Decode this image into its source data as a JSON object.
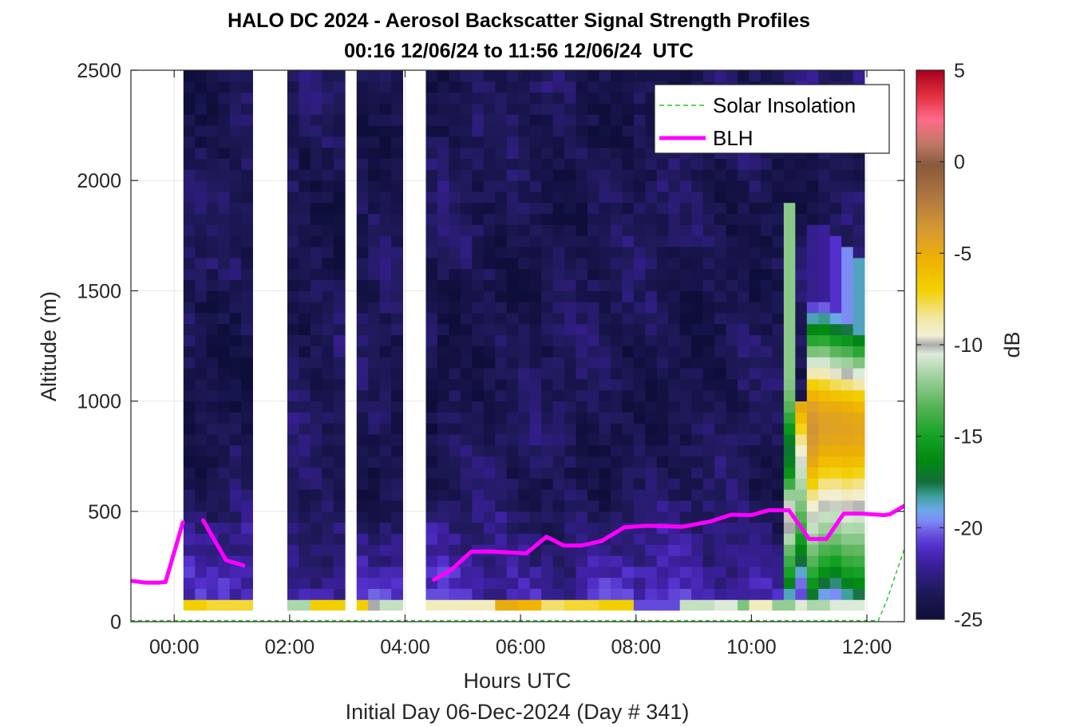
{
  "chart_data": {
    "type": "heatmap",
    "title": "HALO DC 2024 - Aerosol Backscatter Signal Strength Profiles",
    "subtitle": "00:16 12/06/24 to 11:56 12/06/24  UTC",
    "xlabel": "Hours UTC",
    "ylabel": "Altitude (m)",
    "footnote": "Initial Day 06-Dec-2024 (Day # 341)",
    "xlim": [
      -0.75,
      12.65
    ],
    "ylim": [
      0,
      2500
    ],
    "x_ticks": [
      {
        "hour": 0,
        "label": "00:00"
      },
      {
        "hour": 2,
        "label": "02:00"
      },
      {
        "hour": 4,
        "label": "04:00"
      },
      {
        "hour": 6,
        "label": "06:00"
      },
      {
        "hour": 8,
        "label": "08:00"
      },
      {
        "hour": 10,
        "label": "10:00"
      },
      {
        "hour": 12,
        "label": "12:00"
      }
    ],
    "y_ticks": [
      {
        "value": 0,
        "label": "0"
      },
      {
        "value": 500,
        "label": "500"
      },
      {
        "value": 1000,
        "label": "1000"
      },
      {
        "value": 1500,
        "label": "1500"
      },
      {
        "value": 2000,
        "label": "2000"
      },
      {
        "value": 2500,
        "label": "2500"
      }
    ],
    "grid": true,
    "colorbar": {
      "label": "dB",
      "range": [
        -25,
        5
      ],
      "ticks": [
        {
          "value": 5,
          "label": "5"
        },
        {
          "value": 0,
          "label": "0"
        },
        {
          "value": -5,
          "label": "-5"
        },
        {
          "value": -10,
          "label": "-10"
        },
        {
          "value": -15,
          "label": "-15"
        },
        {
          "value": -20,
          "label": "-20"
        },
        {
          "value": -25,
          "label": "-25"
        }
      ],
      "stops": [
        {
          "value": -25,
          "color": "#0e0e3a"
        },
        {
          "value": -23.5,
          "color": "#1f1a5a"
        },
        {
          "value": -22,
          "color": "#3a1f9a"
        },
        {
          "value": -21,
          "color": "#5330cc"
        },
        {
          "value": -20.3,
          "color": "#6a56e0"
        },
        {
          "value": -19.6,
          "color": "#7d8cf5"
        },
        {
          "value": -19,
          "color": "#6aa8e8"
        },
        {
          "value": -18.3,
          "color": "#3fa0a0"
        },
        {
          "value": -17.5,
          "color": "#136e3a"
        },
        {
          "value": -16.3,
          "color": "#008a10"
        },
        {
          "value": -14.8,
          "color": "#1aa52a"
        },
        {
          "value": -13.3,
          "color": "#5ab45a"
        },
        {
          "value": -11.8,
          "color": "#9dd09d"
        },
        {
          "value": -10.5,
          "color": "#dcead8"
        },
        {
          "value": -10,
          "color": "#aaaaaa"
        },
        {
          "value": -9.5,
          "color": "#f2f0d6"
        },
        {
          "value": -8.5,
          "color": "#f2e6a0"
        },
        {
          "value": -7,
          "color": "#f2d000"
        },
        {
          "value": -5.5,
          "color": "#f0b400"
        },
        {
          "value": -3.8,
          "color": "#d89a30"
        },
        {
          "value": -2,
          "color": "#b07840"
        },
        {
          "value": -0.2,
          "color": "#8a5a3c"
        },
        {
          "value": 1,
          "color": "#c07868"
        },
        {
          "value": 2.3,
          "color": "#ff6a88"
        },
        {
          "value": 3.6,
          "color": "#e23040"
        },
        {
          "value": 5,
          "color": "#a8001c"
        }
      ]
    },
    "heatmap": {
      "x_start": 0.16,
      "x_step": 0.2,
      "columns": 59,
      "y_start": 100,
      "y_step": 50,
      "rows": 48,
      "column_gaps": [
        [
          6,
          8
        ],
        [
          13,
          14
        ],
        [
          18,
          20
        ],
        [
          21,
          22
        ],
        [
          28,
          29
        ],
        [
          48,
          49
        ]
      ],
      "dense_profile_columns": [
        13,
        18,
        21,
        22,
        26,
        27,
        28,
        29,
        43,
        44,
        45,
        46,
        47,
        48,
        49,
        50,
        51,
        52,
        53,
        54,
        55,
        56,
        57,
        58
      ],
      "lowest_bin_dB": [
        -7,
        -7.5,
        -7.5,
        -11.5,
        -7.5,
        -11.5,
        -7,
        -7,
        -7,
        -10,
        -11,
        -8.5,
        -9,
        -9,
        -9,
        -9,
        -5,
        -5.5,
        -8,
        -7.5,
        -7.5,
        -7,
        -7,
        -20.5,
        -20.5,
        -11,
        -11,
        -10.5,
        -12.5,
        -9,
        -12,
        -10.5,
        -11.5,
        -10.5,
        -10.5
      ],
      "plume": {
        "columns": [
          52,
          53,
          54,
          55,
          56,
          57,
          58
        ],
        "top_m": [
          1900,
          1000,
          1800,
          1800,
          1750,
          1700,
          1650
        ],
        "profiles_dB": [
          [
            -18.6,
            -16.5,
            -15,
            -14,
            -13,
            -11.5,
            -10,
            -9.8,
            -10.3,
            -12,
            -14,
            -15.8,
            -16.8,
            -17.2,
            -16.8,
            -15.6,
            -14.3,
            -13.4,
            -12.8,
            -12.4,
            -12.2
          ],
          [
            -20.5,
            -20,
            -18.8,
            -17.5,
            -16.5,
            -15.3,
            -14.2,
            -13.4,
            -12.6,
            -12,
            -11.5,
            -11,
            -10.4,
            -9.4,
            -8.3,
            -7.2,
            -6,
            -5,
            -4.4,
            -4.2,
            -4.6,
            -5.8,
            -7.2,
            -8.6,
            -10.1,
            -11.5,
            -13.4,
            -15.3,
            -17.5,
            -19.2,
            -20.5,
            -21.5
          ],
          [
            -17,
            -15.6,
            -14.4,
            -13.4,
            -12.6,
            -11.8,
            -11,
            -10.3,
            -9.4,
            -8.2,
            -7,
            -5.8,
            -4.8,
            -4.1,
            -3.7,
            -3.5,
            -3.7,
            -4.3,
            -5.4,
            -7,
            -8.8,
            -10.7,
            -12.6,
            -14.6,
            -16.5,
            -18.5,
            -20.6,
            -22.3
          ],
          [
            -19.2,
            -17.4,
            -15.9,
            -14.6,
            -13.6,
            -12.7,
            -11.8,
            -11,
            -10.2,
            -9.3,
            -8.2,
            -7.1,
            -6,
            -5.1,
            -4.5,
            -4.2,
            -4.3,
            -4.9,
            -5.9,
            -7.3,
            -8.9,
            -10.7,
            -12.5,
            -14.4,
            -16.2,
            -18.2,
            -20.2,
            -22
          ],
          [
            -19.6,
            -18,
            -16.5,
            -15.1,
            -13.9,
            -12.8,
            -11.9,
            -11.1,
            -10.3,
            -9.4,
            -8.3,
            -7.2,
            -6.1,
            -5.2,
            -4.6,
            -4.3,
            -4.4,
            -5,
            -6.2,
            -7.8,
            -9.6,
            -11.5,
            -13.3,
            -15.2,
            -17.1,
            -19,
            -21
          ],
          [
            -18.3,
            -16.7,
            -15.3,
            -14.2,
            -13.2,
            -12.3,
            -11.4,
            -10.6,
            -9.8,
            -9,
            -8,
            -6.9,
            -5.9,
            -5.1,
            -4.6,
            -4.4,
            -4.6,
            -5.3,
            -6.5,
            -8.1,
            -9.9,
            -11.8,
            -13.7,
            -15.6,
            -17.6,
            -19.6
          ],
          [
            -17.6,
            -16.2,
            -15,
            -14,
            -13.1,
            -12.3,
            -11.5,
            -10.8,
            -10.1,
            -9.3,
            -8.3,
            -7.2,
            -6.1,
            -5.2,
            -4.7,
            -4.5,
            -4.8,
            -5.6,
            -6.9,
            -8.6,
            -10.5,
            -12.5,
            -14.5,
            -16.5,
            -18.6
          ]
        ]
      }
    },
    "series": [
      {
        "name": "BLH",
        "color": "#ff00ff",
        "segments": [
          [
            [
              -0.75,
              185
            ],
            [
              -0.5,
              177
            ],
            [
              -0.25,
              177
            ],
            [
              -0.15,
              180
            ],
            [
              0.15,
              450
            ]
          ],
          [
            [
              0.5,
              460
            ],
            [
              0.9,
              278
            ],
            [
              1.2,
              255
            ]
          ],
          [
            [
              4.5,
              190
            ],
            [
              4.8,
              235
            ],
            [
              5.15,
              318
            ],
            [
              5.5,
              318
            ],
            [
              6.1,
              310
            ],
            [
              6.45,
              385
            ],
            [
              6.75,
              345
            ],
            [
              7.05,
              345
            ],
            [
              7.4,
              365
            ],
            [
              7.8,
              428
            ],
            [
              8.2,
              435
            ],
            [
              8.8,
              430
            ],
            [
              9.3,
              455
            ],
            [
              9.65,
              485
            ],
            [
              10.0,
              483
            ],
            [
              10.3,
              505
            ],
            [
              10.65,
              505
            ],
            [
              11.0,
              375
            ],
            [
              11.3,
              375
            ],
            [
              11.6,
              490
            ],
            [
              11.9,
              490
            ],
            [
              12.3,
              483
            ],
            [
              12.4,
              487
            ],
            [
              12.65,
              525
            ]
          ]
        ]
      },
      {
        "name": "Solar Insolation",
        "color": "#22cc22",
        "points": [
          [
            -0.75,
            5
          ],
          [
            12.2,
            5
          ],
          [
            12.35,
            100
          ],
          [
            12.65,
            330
          ]
        ]
      }
    ],
    "legend": {
      "position": "top-right",
      "entries": [
        "Solar Insolation",
        "BLH"
      ]
    }
  }
}
